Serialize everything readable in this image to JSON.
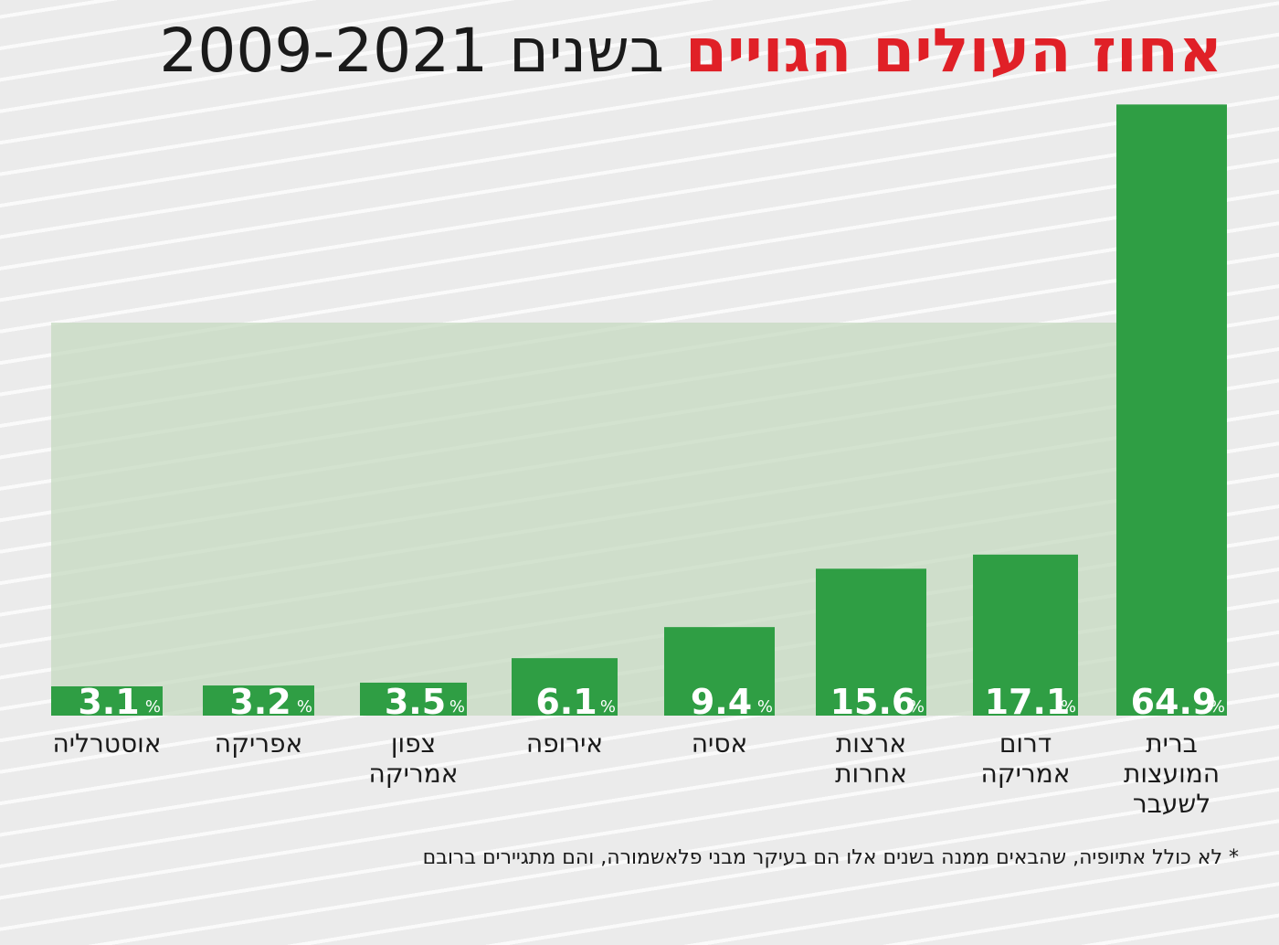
{
  "title": {
    "highlight": "אחוז העולים הגויים",
    "rest": "בשנים",
    "years": "2009-2021"
  },
  "footnote": "* לא כולל אתיופיה, שהבאים ממנה בשנים אלו הם בעיקר מבני פלאשמורה, והם מתגיירים ברובם",
  "colors": {
    "bar": "#2f9e44",
    "highlight_band": "#c5d9c0",
    "title_accent": "#e02027",
    "value_text": "#ffffff"
  },
  "chart_data": {
    "type": "bar",
    "unit": "%",
    "categories": [
      [
        "אוסטרליה"
      ],
      [
        "אפריקה"
      ],
      [
        "צפון",
        "אמריקה"
      ],
      [
        "אירופה"
      ],
      [
        "אסיה"
      ],
      [
        "ארצות",
        "אחרות"
      ],
      [
        "דרום",
        "אמריקה"
      ],
      [
        "ברית",
        "המועצות",
        "לשעבר"
      ]
    ],
    "values": [
      3.1,
      3.2,
      3.5,
      6.1,
      9.4,
      15.6,
      17.1,
      64.9
    ],
    "value_labels": [
      "3.1",
      "3.2",
      "3.5",
      "6.1",
      "9.4",
      "15.6",
      "17.1",
      "64.9"
    ],
    "ylim": [
      0,
      66
    ]
  }
}
